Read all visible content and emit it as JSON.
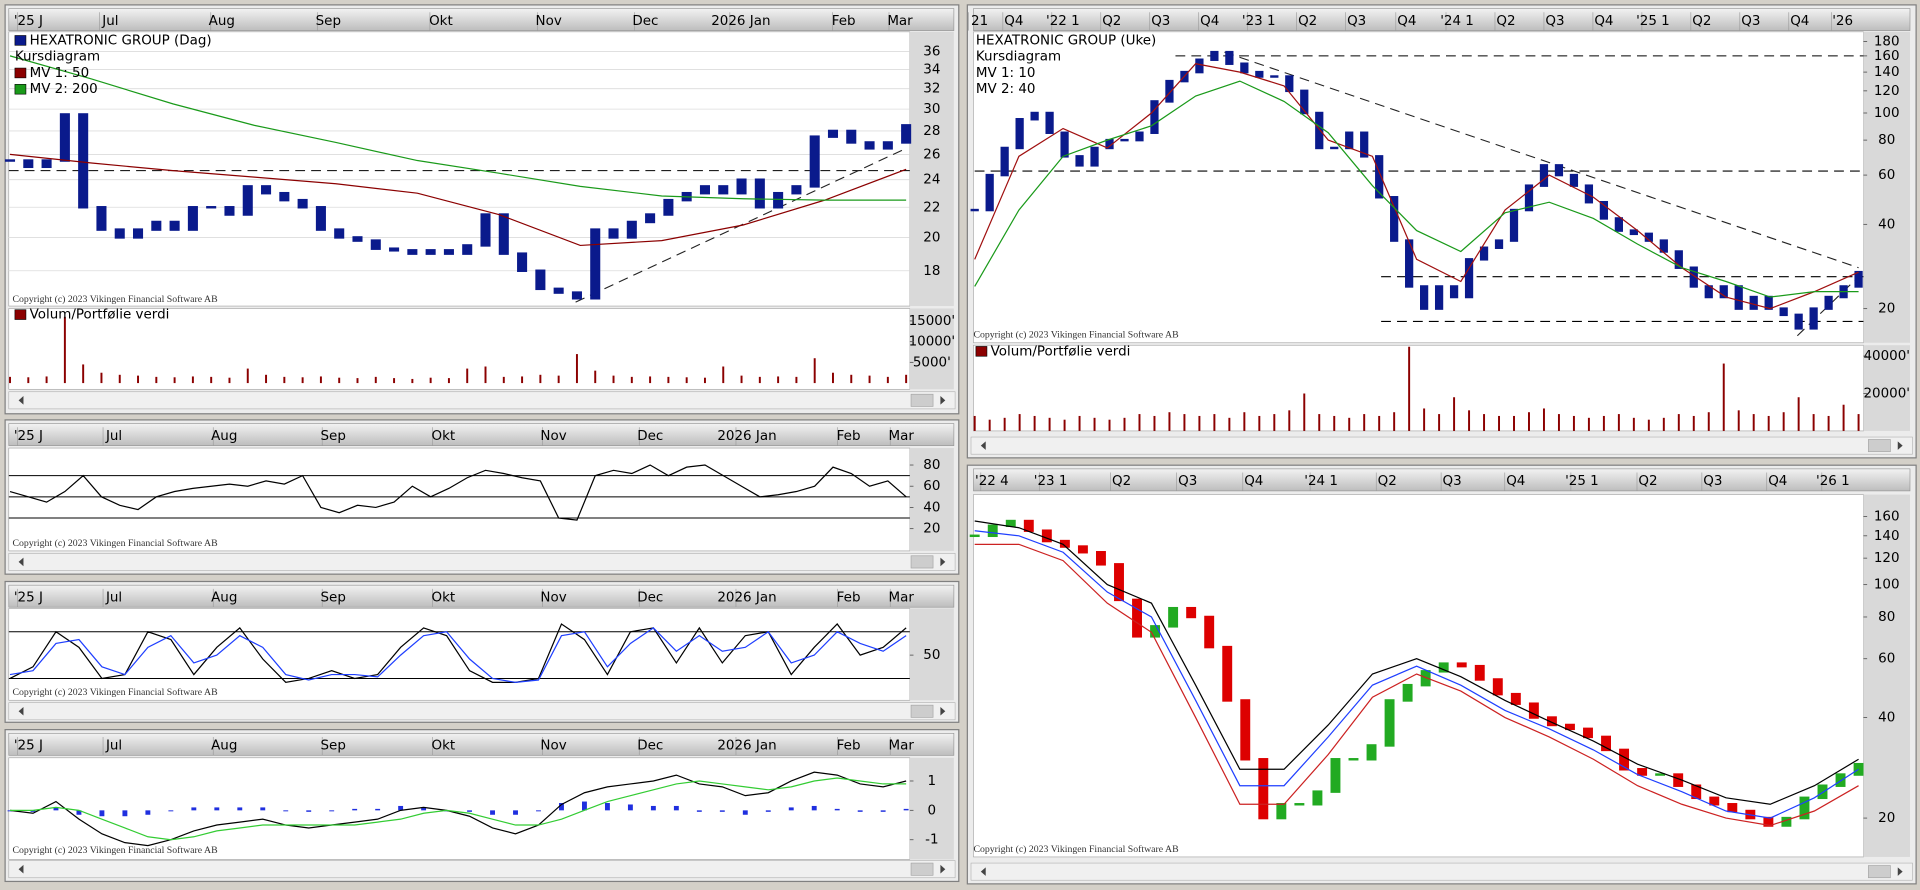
{
  "daily_axis": [
    "'25 J",
    "Jul",
    "Aug",
    "Sep",
    "Okt",
    "Nov",
    "Dec",
    "2026 Jan",
    "Feb",
    "Mar"
  ],
  "weekly_axis": [
    "21",
    "Q4",
    "'22 1",
    "Q2",
    "Q3",
    "Q4",
    "'23 1",
    "Q2",
    "Q3",
    "Q4",
    "'24 1",
    "Q2",
    "Q3",
    "Q4",
    "'25 1",
    "Q2",
    "Q3",
    "Q4",
    "'26"
  ],
  "weekly2_axis": [
    "'22 4",
    "'23 1",
    "Q2",
    "Q3",
    "Q4",
    "'24 1",
    "Q2",
    "Q3",
    "Q4",
    "'25 1",
    "Q2",
    "Q3",
    "Q4",
    "'26 1"
  ],
  "copyright": "Copyright (c) 2023 Vikingen Financial Software AB",
  "panels": [
    {
      "type": "price",
      "log": true,
      "ylim": [
        16.1,
        38.3
      ],
      "yticks": [
        18,
        20,
        22,
        24,
        26,
        28,
        30,
        32,
        34,
        36
      ],
      "grid": true,
      "subtitle": "Kursdiagram",
      "legend_swatches": true,
      "series": [
        {
          "name": "HEXATRONIC GROUP (Dag)",
          "type": "candles",
          "color": "#0a1a8c",
          "values": [
            25.5,
            25,
            25.5,
            29.5,
            22,
            20.5,
            20,
            20.5,
            21,
            20.5,
            22,
            22,
            21.5,
            23.5,
            23,
            22.5,
            22,
            20.5,
            20,
            19.8,
            19.3,
            19.2,
            19,
            19.2,
            19,
            19.5,
            21.5,
            19,
            18,
            17,
            16.8,
            16.5,
            20.5,
            20,
            21,
            21.5,
            22.5,
            23,
            23.5,
            23,
            24,
            22,
            23,
            23.5,
            27.5,
            28,
            27,
            26.5,
            27,
            28.5
          ]
        },
        {
          "name": "MV 1: 50",
          "type": "line",
          "color": "#8b0000",
          "values": [
            26,
            25.3,
            24.7,
            24.2,
            23.7,
            23,
            21.5,
            19.5,
            19.8,
            20.8,
            22.5,
            24.8
          ]
        },
        {
          "name": "MV 2: 200",
          "type": "line",
          "color": "#1a9a1a",
          "values": [
            35.5,
            33,
            30.5,
            28.5,
            27,
            25.5,
            24.5,
            23.5,
            22.8,
            22.6,
            22.5,
            22.5
          ]
        }
      ],
      "hlines": [
        24.7
      ],
      "trendlines": [
        [
          16.3,
          26.5
        ]
      ]
    },
    {
      "type": "bar",
      "legend": "Volum/Portfølie verdi",
      "color": "#8b0000",
      "ylim": [
        -1500,
        18000
      ],
      "yticks": [
        {
          "value": 5000,
          "label": "5000'"
        },
        {
          "value": 10000,
          "label": "10000'"
        },
        {
          "value": 15000,
          "label": "15000'"
        }
      ],
      "values": [
        1500,
        1400,
        1600,
        16000,
        4500,
        2500,
        2000,
        1800,
        1500,
        1400,
        1600,
        1500,
        1300,
        3500,
        2000,
        1500,
        1400,
        1600,
        1300,
        1200,
        1500,
        1200,
        1000,
        1300,
        1200,
        3500,
        4000,
        1500,
        1600,
        2000,
        1800,
        7000,
        3000,
        1800,
        1500,
        1600,
        1500,
        1400,
        1300,
        4000,
        1800,
        1500,
        1600,
        1500,
        6000,
        2500,
        2000,
        1800,
        1500,
        2000
      ]
    },
    {
      "type": "line",
      "ylim": [
        -1,
        96
      ],
      "yticks": [
        20,
        40,
        60,
        80
      ],
      "hlines": [
        30,
        50,
        70
      ],
      "series": [
        {
          "type": "line",
          "color": "#000000",
          "values": [
            55,
            50,
            45,
            55,
            70,
            50,
            42,
            38,
            50,
            55,
            58,
            60,
            62,
            60,
            65,
            62,
            70,
            40,
            35,
            42,
            40,
            45,
            60,
            50,
            58,
            68,
            75,
            72,
            68,
            65,
            30,
            28,
            70,
            75,
            72,
            80,
            70,
            78,
            80,
            70,
            60,
            50,
            52,
            55,
            60,
            78,
            72,
            60,
            65,
            50
          ]
        }
      ]
    },
    {
      "type": "line",
      "ylim": [
        -8,
        110
      ],
      "yticks": [
        50
      ],
      "hlines": [
        20,
        80
      ],
      "series": [
        {
          "type": "line",
          "color": "#000000",
          "values": [
            20,
            35,
            80,
            60,
            20,
            25,
            80,
            70,
            25,
            60,
            85,
            45,
            15,
            20,
            30,
            20,
            25,
            60,
            85,
            75,
            30,
            15,
            15,
            20,
            90,
            70,
            25,
            80,
            85,
            40,
            85,
            40,
            75,
            80,
            25,
            60,
            90,
            50,
            60,
            85
          ]
        },
        {
          "type": "line",
          "color": "#1f3fff",
          "values": [
            25,
            30,
            65,
            70,
            35,
            25,
            60,
            75,
            40,
            50,
            75,
            60,
            25,
            18,
            25,
            25,
            22,
            50,
            75,
            80,
            45,
            20,
            15,
            18,
            75,
            80,
            35,
            65,
            85,
            55,
            75,
            55,
            60,
            80,
            40,
            50,
            80,
            65,
            55,
            75
          ]
        }
      ]
    },
    {
      "type": "line",
      "ylim": [
        -1.67,
        1.79
      ],
      "yticks": [
        -1,
        0,
        1
      ],
      "histogram": {
        "color": "#1f2fdf",
        "values": [
          0,
          -0.05,
          0.1,
          -0.15,
          -0.2,
          -0.2,
          -0.15,
          0,
          0.1,
          0.1,
          0.1,
          0.1,
          0,
          -0.05,
          0,
          0.05,
          0.05,
          0.15,
          0.1,
          0,
          -0.05,
          -0.15,
          -0.15,
          0,
          0.25,
          0.3,
          0.25,
          0.2,
          0.15,
          0.15,
          -0.05,
          -0.05,
          -0.15,
          -0.05,
          0.1,
          0.15,
          0.05,
          -0.05,
          -0.05,
          0.05
        ]
      },
      "series": [
        {
          "type": "line",
          "color": "#000000",
          "values": [
            0,
            -0.1,
            0.3,
            -0.3,
            -0.8,
            -1.1,
            -1.2,
            -1.0,
            -0.7,
            -0.5,
            -0.4,
            -0.3,
            -0.5,
            -0.6,
            -0.5,
            -0.4,
            -0.3,
            0,
            0.1,
            0,
            -0.2,
            -0.6,
            -0.8,
            -0.5,
            0.2,
            0.6,
            0.8,
            0.9,
            1.0,
            1.2,
            0.9,
            0.8,
            0.5,
            0.6,
            1.0,
            1.3,
            1.2,
            0.9,
            0.8,
            1.0
          ]
        },
        {
          "type": "line",
          "color": "#33cc33",
          "values": [
            0,
            0,
            0.1,
            0,
            -0.3,
            -0.6,
            -0.9,
            -1.0,
            -0.9,
            -0.7,
            -0.6,
            -0.5,
            -0.5,
            -0.5,
            -0.5,
            -0.5,
            -0.4,
            -0.3,
            -0.1,
            0,
            -0.1,
            -0.3,
            -0.5,
            -0.5,
            -0.3,
            0,
            0.3,
            0.5,
            0.7,
            0.9,
            1.0,
            0.9,
            0.8,
            0.7,
            0.8,
            1.0,
            1.1,
            1.0,
            0.9,
            0.9
          ]
        }
      ]
    },
    {
      "type": "price",
      "log": true,
      "ylim": [
        15.1,
        195
      ],
      "yticks": [
        20,
        40,
        60,
        80,
        100,
        120,
        140,
        160,
        180
      ],
      "grid": false,
      "subtitle": "Kursdiagram",
      "legend_swatches": false,
      "series": [
        {
          "name": "HEXATRONIC GROUP (Uke)",
          "type": "candles",
          "color": "#0a1a8c",
          "values": [
            45,
            60,
            75,
            95,
            100,
            85,
            70,
            65,
            75,
            80,
            80,
            85,
            110,
            130,
            140,
            155,
            165,
            150,
            140,
            135,
            135,
            120,
            100,
            75,
            75,
            85,
            70,
            50,
            35,
            24,
            20,
            24,
            22,
            30,
            33,
            35,
            45,
            55,
            65,
            60,
            55,
            48,
            42,
            38,
            37,
            35,
            32,
            28,
            24,
            22,
            24,
            20,
            22,
            20,
            19,
            17,
            20,
            22,
            24,
            27
          ]
        },
        {
          "name": "MV 1: 10",
          "type": "line",
          "color": "#a01010",
          "values": [
            30,
            70,
            88,
            75,
            100,
            150,
            140,
            125,
            80,
            70,
            30,
            25,
            45,
            60,
            50,
            38,
            28,
            22,
            20,
            23,
            27
          ]
        },
        {
          "name": "MV 2: 40",
          "type": "line",
          "color": "#1a9a1a",
          "values": [
            24,
            45,
            70,
            80,
            90,
            115,
            130,
            110,
            85,
            55,
            38,
            32,
            44,
            48,
            42,
            34,
            28,
            25,
            22,
            23,
            23
          ]
        }
      ],
      "hlines": [
        160,
        62,
        26,
        18
      ],
      "trendlines": [
        [
          165,
          28
        ],
        [
          16,
          26
        ]
      ]
    },
    {
      "type": "bar",
      "legend": "Volum/Portfølie verdi",
      "color": "#8b0000",
      "ylim": [
        0,
        45800
      ],
      "yticks": [
        {
          "value": 20000,
          "label": "20000'"
        },
        {
          "value": 40000,
          "label": "40000'"
        }
      ],
      "values": [
        8000,
        6000,
        7000,
        9000,
        8000,
        7000,
        6000,
        8000,
        7000,
        6000,
        7000,
        9000,
        8000,
        10000,
        9000,
        8000,
        9000,
        7000,
        10000,
        8000,
        9000,
        11000,
        20000,
        9000,
        8000,
        7000,
        9000,
        8000,
        10000,
        45000,
        12000,
        9000,
        18000,
        11000,
        9000,
        8000,
        8000,
        10000,
        12000,
        9000,
        8000,
        7000,
        8000,
        9000,
        7000,
        6000,
        7000,
        9000,
        8000,
        10000,
        36000,
        11000,
        9000,
        8000,
        10000,
        18000,
        9000,
        8000,
        14000,
        9000
      ]
    },
    {
      "type": "price",
      "log": true,
      "ylim": [
        15.3,
        186
      ],
      "yticks": [
        20,
        40,
        60,
        80,
        100,
        120,
        140,
        160
      ],
      "grid": false,
      "series": [
        {
          "type": "candles",
          "up_color": "#22aa22",
          "down_color": "#dd0000",
          "values": [
            140,
            150,
            155,
            145,
            135,
            130,
            125,
            115,
            90,
            70,
            75,
            85,
            80,
            65,
            45,
            30,
            20,
            22,
            22,
            24,
            30,
            30,
            33,
            45,
            50,
            55,
            58,
            57,
            52,
            47,
            44,
            40,
            38,
            37,
            35,
            32,
            28,
            27,
            27,
            25,
            23,
            22,
            21,
            20,
            19,
            20,
            23,
            25,
            27,
            29
          ]
        },
        {
          "type": "line",
          "color": "#000000",
          "values": [
            155,
            148,
            132,
            100,
            88,
            50,
            28,
            28,
            38,
            54,
            60,
            53,
            45,
            39,
            34,
            29,
            26,
            23,
            22,
            25,
            30
          ]
        },
        {
          "type": "line",
          "color": "#1f3fff",
          "values": [
            145,
            140,
            125,
            95,
            80,
            45,
            25,
            25,
            35,
            50,
            57,
            50,
            42,
            37,
            32,
            27,
            24,
            21,
            20,
            23,
            28
          ]
        },
        {
          "type": "line",
          "color": "#cc2222",
          "values": [
            132,
            132,
            118,
            88,
            72,
            40,
            22,
            22,
            31,
            46,
            54,
            48,
            40,
            35,
            30,
            25,
            22,
            20,
            19,
            21,
            25
          ]
        }
      ]
    }
  ]
}
